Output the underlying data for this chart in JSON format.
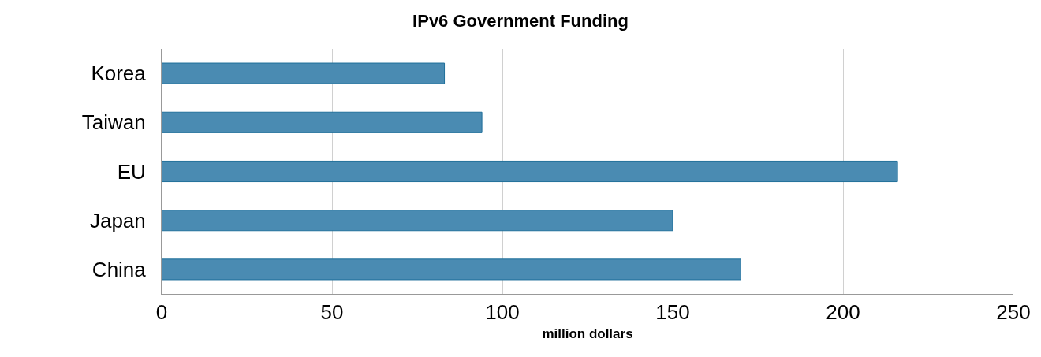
{
  "chart_data": {
    "type": "bar",
    "orientation": "horizontal",
    "title": "IPv6 Government Funding",
    "xlabel": "million dollars",
    "categories": [
      "Korea",
      "Taiwan",
      "EU",
      "Japan",
      "China"
    ],
    "values": [
      83,
      94,
      216,
      150,
      170
    ],
    "color": "#4a8bb2",
    "xlim": [
      0,
      250
    ],
    "xticks": [
      0,
      50,
      100,
      150,
      200,
      250
    ],
    "grid": "x"
  }
}
